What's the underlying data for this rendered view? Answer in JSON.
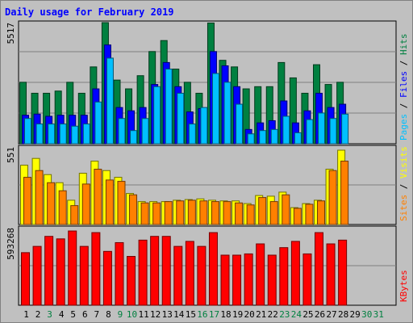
{
  "title": "Daily usage for February 2019",
  "colors": {
    "hits": "#008040",
    "files": "#0000ff",
    "pages": "#00c0ff",
    "visits": "#ffff00",
    "sites": "#ff8000",
    "kbytes": "#ff0000",
    "weekend": "#008040",
    "weekday": "#000000",
    "background": "#c0c0c0"
  },
  "chart_data": [
    {
      "type": "bar",
      "name": "hits-files-pages",
      "ymax_label": "5517",
      "ylim": [
        0,
        5517
      ],
      "legend": [
        {
          "text": "Pages",
          "color": "#00c0ff"
        },
        {
          "text": " / ",
          "color": "#000000"
        },
        {
          "text": "Files",
          "color": "#0000ff"
        },
        {
          "text": " / ",
          "color": "#000000"
        },
        {
          "text": "Hits",
          "color": "#008040"
        }
      ],
      "categories": [
        "1",
        "2",
        "3",
        "4",
        "5",
        "6",
        "7",
        "8",
        "9",
        "10",
        "11",
        "12",
        "13",
        "14",
        "15",
        "16",
        "17",
        "18",
        "19",
        "20",
        "21",
        "22",
        "23",
        "24",
        "25",
        "26",
        "27",
        "28",
        "29",
        "30",
        "31"
      ],
      "series": [
        {
          "key": "hits",
          "values": [
            2800,
            2300,
            2300,
            2400,
            2800,
            2300,
            3500,
            5517,
            2900,
            2500,
            3100,
            4200,
            4700,
            3400,
            2800,
            2300,
            5500,
            3800,
            3500,
            2500,
            2600,
            2600,
            3700,
            3000,
            2300,
            3600,
            2700,
            2800,
            null,
            null,
            null
          ]
        },
        {
          "key": "files",
          "values": [
            1300,
            1350,
            1250,
            1300,
            1300,
            1300,
            2500,
            4500,
            1650,
            1500,
            1650,
            2700,
            3700,
            2600,
            1450,
            1600,
            4200,
            3550,
            2600,
            650,
            950,
            1050,
            1950,
            950,
            1500,
            2300,
            1650,
            1800,
            null,
            null,
            null
          ]
        },
        {
          "key": "pages",
          "values": [
            1150,
            900,
            900,
            900,
            800,
            900,
            1900,
            3900,
            1150,
            600,
            1150,
            2600,
            3400,
            2300,
            900,
            1650,
            3200,
            2800,
            1800,
            450,
            600,
            650,
            1250,
            500,
            1100,
            1400,
            1150,
            1350,
            null,
            null,
            null
          ]
        }
      ]
    },
    {
      "type": "bar",
      "name": "visits-sites",
      "ymax_label": "551",
      "ylim": [
        0,
        551
      ],
      "legend": [
        {
          "text": "Sites",
          "color": "#ff8000"
        },
        {
          "text": " / ",
          "color": "#000000"
        },
        {
          "text": "Visits",
          "color": "#ffff00"
        }
      ],
      "categories": [
        "1",
        "2",
        "3",
        "4",
        "5",
        "6",
        "7",
        "8",
        "9",
        "10",
        "11",
        "12",
        "13",
        "14",
        "15",
        "16",
        "17",
        "18",
        "19",
        "20",
        "21",
        "22",
        "23",
        "24",
        "25",
        "26",
        "27",
        "28",
        "29",
        "30",
        "31"
      ],
      "series": [
        {
          "key": "visits",
          "values": [
            440,
            490,
            370,
            310,
            180,
            380,
            470,
            400,
            350,
            230,
            170,
            170,
            170,
            180,
            185,
            190,
            180,
            175,
            175,
            155,
            215,
            210,
            240,
            125,
            155,
            180,
            410,
            551,
            null,
            null,
            null
          ]
        },
        {
          "key": "sites",
          "values": [
            350,
            400,
            310,
            250,
            140,
            300,
            410,
            330,
            320,
            220,
            160,
            160,
            170,
            175,
            180,
            175,
            170,
            170,
            160,
            145,
            200,
            170,
            220,
            120,
            150,
            175,
            400,
            470,
            null,
            null,
            null
          ]
        }
      ]
    },
    {
      "type": "bar",
      "name": "kbytes",
      "ymax_label": "593268",
      "ylim": [
        0,
        593268
      ],
      "legend": [
        {
          "text": "KBytes",
          "color": "#ff0000"
        }
      ],
      "categories": [
        "1",
        "2",
        "3",
        "4",
        "5",
        "6",
        "7",
        "8",
        "9",
        "10",
        "11",
        "12",
        "13",
        "14",
        "15",
        "16",
        "17",
        "18",
        "19",
        "20",
        "21",
        "22",
        "23",
        "24",
        "25",
        "26",
        "27",
        "28",
        "29",
        "30",
        "31"
      ],
      "series": [
        {
          "key": "kbytes",
          "values": [
            420000,
            470000,
            550000,
            530000,
            593000,
            470000,
            580000,
            430000,
            500000,
            390000,
            520000,
            550000,
            550000,
            470000,
            510000,
            470000,
            580000,
            400000,
            400000,
            410000,
            490000,
            400000,
            460000,
            510000,
            410000,
            580000,
            490000,
            520000,
            null,
            null,
            null
          ]
        }
      ]
    }
  ]
}
